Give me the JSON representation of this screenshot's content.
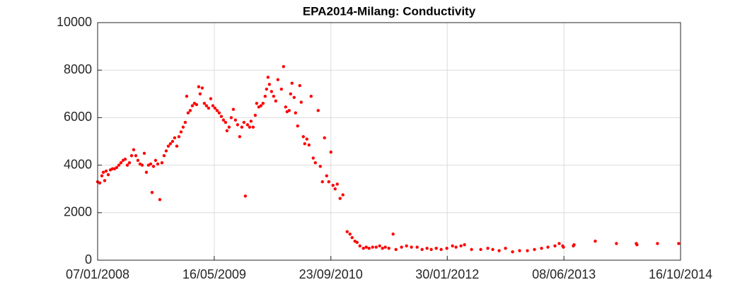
{
  "chart_data": {
    "type": "scatter",
    "title": "EPA2014-Milang: Conductivity",
    "color": "#ff0000",
    "grid": true,
    "xlim": [
      "07/01/2008",
      "16/10/2014"
    ],
    "xticks": [
      "07/01/2008",
      "16/05/2009",
      "23/09/2010",
      "30/01/2012",
      "08/06/2013",
      "16/10/2014"
    ],
    "ylim": [
      0,
      10000
    ],
    "yticks": [
      0,
      2000,
      4000,
      6000,
      8000,
      10000
    ],
    "x": [
      "07/01/2008",
      "16/01/2008",
      "25/01/2008",
      "31/01/2008",
      "06/02/2008",
      "12/02/2008",
      "21/02/2008",
      "01/03/2008",
      "10/03/2008",
      "19/03/2008",
      "28/03/2008",
      "06/04/2008",
      "15/04/2008",
      "24/04/2008",
      "03/05/2008",
      "12/05/2008",
      "21/05/2008",
      "30/05/2008",
      "08/06/2008",
      "17/06/2008",
      "26/06/2008",
      "05/07/2008",
      "14/07/2008",
      "23/07/2008",
      "01/08/2008",
      "10/08/2008",
      "19/08/2008",
      "25/08/2008",
      "31/08/2008",
      "09/09/2008",
      "18/09/2008",
      "27/09/2008",
      "06/10/2008",
      "15/10/2008",
      "24/10/2008",
      "02/11/2008",
      "11/11/2008",
      "20/11/2008",
      "29/11/2008",
      "08/12/2008",
      "17/12/2008",
      "26/12/2008",
      "04/01/2009",
      "13/01/2009",
      "19/01/2009",
      "25/01/2009",
      "03/02/2009",
      "12/02/2009",
      "21/02/2009",
      "02/03/2009",
      "11/03/2009",
      "17/03/2009",
      "26/03/2009",
      "04/04/2009",
      "13/04/2009",
      "22/04/2009",
      "01/05/2009",
      "10/05/2009",
      "19/05/2009",
      "28/05/2009",
      "06/06/2009",
      "15/06/2009",
      "24/06/2009",
      "03/07/2009",
      "09/07/2009",
      "18/07/2009",
      "27/07/2009",
      "05/08/2009",
      "14/08/2009",
      "23/08/2009",
      "01/09/2009",
      "10/09/2009",
      "19/09/2009",
      "25/09/2009",
      "04/10/2009",
      "13/10/2009",
      "19/10/2009",
      "28/10/2009",
      "06/11/2009",
      "12/11/2009",
      "21/11/2009",
      "30/11/2009",
      "09/12/2009",
      "18/12/2009",
      "24/12/2009",
      "30/12/2009",
      "05/01/2010",
      "14/01/2010",
      "23/01/2010",
      "01/02/2010",
      "10/02/2010",
      "25/02/2010",
      "06/03/2010",
      "15/03/2010",
      "21/03/2010",
      "30/03/2010",
      "05/04/2010",
      "11/04/2010",
      "20/04/2010",
      "26/04/2010",
      "05/05/2010",
      "14/05/2010",
      "20/05/2010",
      "29/05/2010",
      "04/06/2010",
      "13/06/2010",
      "22/06/2010",
      "01/07/2010",
      "10/07/2010",
      "19/07/2010",
      "31/07/2010",
      "09/08/2010",
      "18/08/2010",
      "27/08/2010",
      "05/09/2010",
      "14/09/2010",
      "23/09/2010",
      "02/10/2010",
      "11/10/2010",
      "20/10/2010",
      "01/11/2010",
      "13/11/2010",
      "01/12/2010",
      "13/12/2010",
      "22/12/2010",
      "03/01/2011",
      "12/01/2011",
      "24/01/2011",
      "08/02/2011",
      "20/02/2011",
      "04/03/2011",
      "19/03/2011",
      "03/04/2011",
      "18/04/2011",
      "30/04/2011",
      "12/05/2011",
      "27/05/2011",
      "14/06/2011",
      "26/06/2011",
      "20/07/2011",
      "10/08/2011",
      "31/08/2011",
      "24/09/2011",
      "15/10/2011",
      "05/11/2011",
      "23/11/2011",
      "14/12/2011",
      "04/01/2012",
      "28/01/2012",
      "21/02/2012",
      "07/03/2012",
      "28/03/2012",
      "12/04/2012",
      "12/05/2012",
      "20/06/2012",
      "20/07/2012",
      "10/08/2012",
      "06/09/2012",
      "03/10/2012",
      "02/11/2012",
      "02/12/2012",
      "04/01/2013",
      "03/02/2013",
      "05/03/2013",
      "01/04/2013",
      "01/05/2013",
      "19/05/2013",
      "03/06/2013",
      "06/06/2013",
      "18/07/2013",
      "21/07/2013",
      "19/10/2013",
      "17/01/2014",
      "11/04/2014",
      "14/04/2014",
      "10/07/2014",
      "08/10/2014"
    ],
    "values": [
      3300,
      3250,
      3550,
      3700,
      3350,
      3750,
      3600,
      3800,
      3850,
      3850,
      3900,
      4000,
      4100,
      4200,
      4250,
      4000,
      4100,
      4400,
      4650,
      4400,
      4200,
      4050,
      4000,
      4500,
      3700,
      4000,
      4050,
      2850,
      3950,
      4200,
      4050,
      2550,
      4100,
      4400,
      4600,
      4800,
      4900,
      5000,
      5150,
      4800,
      5200,
      5400,
      5600,
      5800,
      6900,
      6200,
      6300,
      6500,
      6600,
      6550,
      7300,
      7000,
      7250,
      6600,
      6500,
      6400,
      6800,
      6500,
      6400,
      6300,
      6200,
      6050,
      5900,
      5800,
      5450,
      5600,
      6000,
      6350,
      5900,
      5700,
      5200,
      5600,
      5800,
      2700,
      5700,
      5600,
      5850,
      5600,
      6100,
      6600,
      6450,
      6500,
      6600,
      6900,
      7200,
      7700,
      7400,
      7100,
      6900,
      6700,
      7600,
      7200,
      8150,
      6450,
      6250,
      6300,
      7000,
      7450,
      6850,
      6200,
      5650,
      7350,
      6650,
      5200,
      4900,
      5100,
      4850,
      6900,
      4300,
      4100,
      6300,
      3950,
      3300,
      5150,
      3550,
      3300,
      4550,
      3150,
      3000,
      3200,
      2600,
      2750,
      1200,
      1100,
      950,
      800,
      750,
      600,
      500,
      550,
      500,
      550,
      550,
      600,
      500,
      550,
      500,
      1100,
      450,
      550,
      600,
      550,
      550,
      450,
      500,
      450,
      500,
      450,
      500,
      600,
      550,
      600,
      650,
      450,
      450,
      500,
      450,
      400,
      500,
      350,
      400,
      400,
      450,
      500,
      550,
      600,
      700,
      600,
      550,
      600,
      650,
      800,
      700,
      700,
      650,
      700,
      700
    ]
  }
}
